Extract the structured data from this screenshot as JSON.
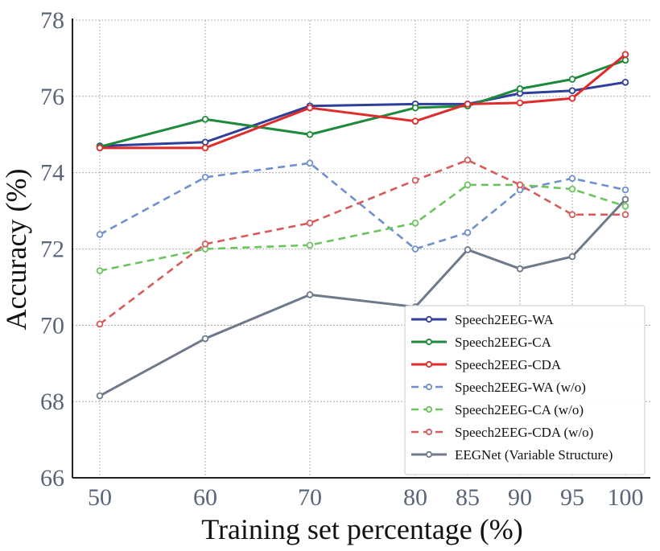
{
  "chart_data": {
    "type": "line",
    "title": "",
    "xlabel": "Training set percentage (%)",
    "ylabel": "Accuracy (%)",
    "categories": [
      "50",
      "60",
      "70",
      "80",
      "85",
      "90",
      "95",
      "100"
    ],
    "ylim": [
      66,
      78
    ],
    "yticks": [
      66,
      68,
      70,
      72,
      74,
      76,
      78
    ],
    "grid": true,
    "legend_position": "bottom-right",
    "series": [
      {
        "name": "Speech2EEG-WA",
        "color": "#2f3f9a",
        "dash": false,
        "values": [
          74.7,
          74.8,
          75.75,
          75.8,
          75.8,
          76.08,
          76.15,
          76.37
        ]
      },
      {
        "name": "Speech2EEG-CA",
        "color": "#1f8a3c",
        "dash": false,
        "values": [
          74.68,
          75.4,
          75.0,
          75.7,
          75.75,
          76.2,
          76.45,
          76.95
        ]
      },
      {
        "name": "Speech2EEG-CDA",
        "color": "#e02b2b",
        "dash": false,
        "values": [
          74.65,
          74.65,
          75.7,
          75.35,
          75.8,
          75.83,
          75.95,
          77.1
        ]
      },
      {
        "name": "Speech2EEG-WA (w/o)",
        "color": "#6f90cc",
        "dash": true,
        "values": [
          72.38,
          73.88,
          74.25,
          72.0,
          72.43,
          73.55,
          73.85,
          73.55
        ]
      },
      {
        "name": "Speech2EEG-CA (w/o)",
        "color": "#6cc45e",
        "dash": true,
        "values": [
          71.43,
          72.0,
          72.1,
          72.68,
          73.68,
          73.68,
          73.57,
          73.12
        ]
      },
      {
        "name": "Speech2EEG-CDA (w/o)",
        "color": "#d65b5b",
        "dash": true,
        "values": [
          70.03,
          72.13,
          72.68,
          73.8,
          74.33,
          73.68,
          72.9,
          72.9
        ]
      },
      {
        "name": "EEGNet (Variable Structure)",
        "color": "#6e7a8a",
        "dash": false,
        "values": [
          68.15,
          69.65,
          70.8,
          70.48,
          71.98,
          71.48,
          71.8,
          73.3
        ]
      }
    ]
  }
}
